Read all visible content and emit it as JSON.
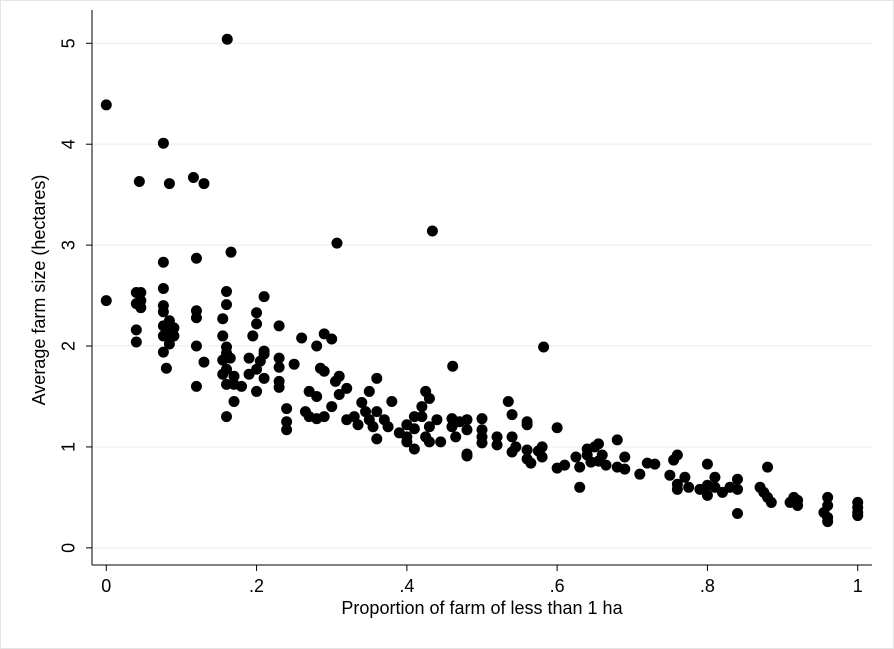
{
  "chart_data": {
    "type": "scatter",
    "x_label": "Proportion of farm of less than 1 ha",
    "y_label": "Average farm size (hectares)",
    "color": "#000000",
    "grid": true,
    "xlim": [
      -0.019,
      1.019
    ],
    "ylim": [
      -0.17,
      5.33
    ],
    "xticks": [
      0,
      {
        "value": 0.2,
        "label": ".2"
      },
      {
        "value": 0.4,
        "label": ".4"
      },
      {
        "value": 0.6,
        "label": ".6"
      },
      {
        "value": 0.8,
        "label": ".8"
      },
      1
    ],
    "yticks": [
      0,
      1,
      2,
      3,
      4,
      5
    ],
    "x": [
      0,
      0,
      0.161,
      0.076,
      0.044,
      0.084,
      0.116,
      0.13,
      0.166,
      0.307,
      0.434,
      0.076,
      0.12,
      0.582,
      0.461,
      0.04,
      0.046,
      0.04,
      0.046,
      0.04,
      0.04,
      0.046,
      0.076,
      0.076,
      0.076,
      0.076,
      0.08,
      0.084,
      0.09,
      0.084,
      0.076,
      0.08,
      0.09,
      0.076,
      0.084,
      0.12,
      0.12,
      0.12,
      0.12,
      0.13,
      0.155,
      0.155,
      0.16,
      0.16,
      0.16,
      0.16,
      0.155,
      0.16,
      0.155,
      0.16,
      0.17,
      0.16,
      0.17,
      0.17,
      0.165,
      0.18,
      0.19,
      0.19,
      0.195,
      0.2,
      0.2,
      0.2,
      0.2,
      0.205,
      0.21,
      0.21,
      0.21,
      0.21,
      0.23,
      0.23,
      0.23,
      0.23,
      0.23,
      0.24,
      0.24,
      0.24,
      0.25,
      0.26,
      0.27,
      0.265,
      0.27,
      0.28,
      0.28,
      0.28,
      0.285,
      0.29,
      0.29,
      0.29,
      0.3,
      0.3,
      0.305,
      0.31,
      0.31,
      0.32,
      0.32,
      0.33,
      0.335,
      0.34,
      0.345,
      0.35,
      0.35,
      0.355,
      0.36,
      0.36,
      0.36,
      0.37,
      0.375,
      0.38,
      0.39,
      0.4,
      0.4,
      0.4,
      0.41,
      0.41,
      0.41,
      0.42,
      0.42,
      0.425,
      0.425,
      0.43,
      0.43,
      0.43,
      0.44,
      0.445,
      0.46,
      0.46,
      0.465,
      0.47,
      0.48,
      0.48,
      0.48,
      0.48,
      0.5,
      0.5,
      0.5,
      0.5,
      0.52,
      0.52,
      0.535,
      0.54,
      0.54,
      0.54,
      0.545,
      0.56,
      0.56,
      0.56,
      0.56,
      0.565,
      0.575,
      0.58,
      0.58,
      0.6,
      0.6,
      0.61,
      0.625,
      0.63,
      0.63,
      0.64,
      0.64,
      0.645,
      0.65,
      0.655,
      0.655,
      0.66,
      0.665,
      0.68,
      0.68,
      0.69,
      0.69,
      0.71,
      0.72,
      0.73,
      0.75,
      0.755,
      0.76,
      0.76,
      0.76,
      0.77,
      0.775,
      0.79,
      0.8,
      0.8,
      0.8,
      0.81,
      0.81,
      0.82,
      0.83,
      0.84,
      0.84,
      0.84,
      0.87,
      0.875,
      0.88,
      0.88,
      0.885,
      0.91,
      0.915,
      0.92,
      0.92,
      0.955,
      0.96,
      0.96,
      0.96,
      0.96,
      1,
      1,
      1,
      1
    ],
    "values": [
      4.39,
      2.45,
      5.04,
      4.01,
      3.63,
      3.61,
      3.67,
      3.61,
      2.93,
      3.02,
      3.14,
      2.83,
      2.87,
      1.99,
      1.8,
      2.53,
      2.53,
      2.42,
      2.45,
      2.16,
      2.04,
      2.38,
      2.57,
      2.4,
      2.34,
      2.2,
      2.15,
      2.25,
      2.1,
      2.02,
      1.94,
      1.78,
      2.18,
      2.1,
      2.12,
      2.35,
      2.28,
      2.0,
      1.6,
      1.84,
      2.27,
      2.1,
      2.41,
      2.54,
      1.99,
      1.93,
      1.86,
      1.77,
      1.72,
      1.62,
      1.62,
      1.3,
      1.45,
      1.7,
      1.88,
      1.6,
      1.88,
      1.72,
      2.1,
      2.22,
      2.33,
      1.77,
      1.55,
      1.85,
      2.49,
      1.95,
      1.68,
      1.92,
      2.2,
      1.88,
      1.79,
      1.65,
      1.59,
      1.38,
      1.25,
      1.17,
      1.82,
      2.08,
      1.55,
      1.35,
      1.3,
      2.0,
      1.5,
      1.28,
      1.78,
      2.12,
      1.75,
      1.3,
      2.07,
      1.4,
      1.65,
      1.7,
      1.52,
      1.58,
      1.27,
      1.3,
      1.22,
      1.44,
      1.35,
      1.55,
      1.27,
      1.2,
      1.68,
      1.35,
      1.08,
      1.27,
      1.2,
      1.45,
      1.14,
      1.22,
      1.1,
      1.05,
      1.3,
      1.18,
      0.98,
      1.4,
      1.3,
      1.55,
      1.1,
      1.48,
      1.2,
      1.05,
      1.27,
      1.05,
      1.28,
      1.2,
      1.1,
      1.25,
      1.27,
      1.17,
      0.93,
      0.91,
      1.28,
      1.17,
      1.1,
      1.04,
      1.1,
      1.02,
      1.45,
      1.32,
      1.1,
      0.95,
      1.0,
      1.25,
      1.22,
      0.97,
      0.88,
      0.84,
      0.96,
      1.0,
      0.9,
      1.19,
      0.79,
      0.82,
      0.9,
      0.8,
      0.6,
      0.98,
      0.92,
      0.85,
      1.0,
      1.03,
      0.86,
      0.92,
      0.82,
      1.07,
      0.8,
      0.9,
      0.78,
      0.73,
      0.84,
      0.83,
      0.72,
      0.87,
      0.92,
      0.63,
      0.58,
      0.7,
      0.6,
      0.58,
      0.83,
      0.62,
      0.52,
      0.7,
      0.6,
      0.55,
      0.6,
      0.68,
      0.58,
      0.34,
      0.6,
      0.55,
      0.8,
      0.5,
      0.45,
      0.45,
      0.5,
      0.42,
      0.47,
      0.35,
      0.5,
      0.42,
      0.3,
      0.26,
      0.45,
      0.4,
      0.35,
      0.32
    ]
  }
}
